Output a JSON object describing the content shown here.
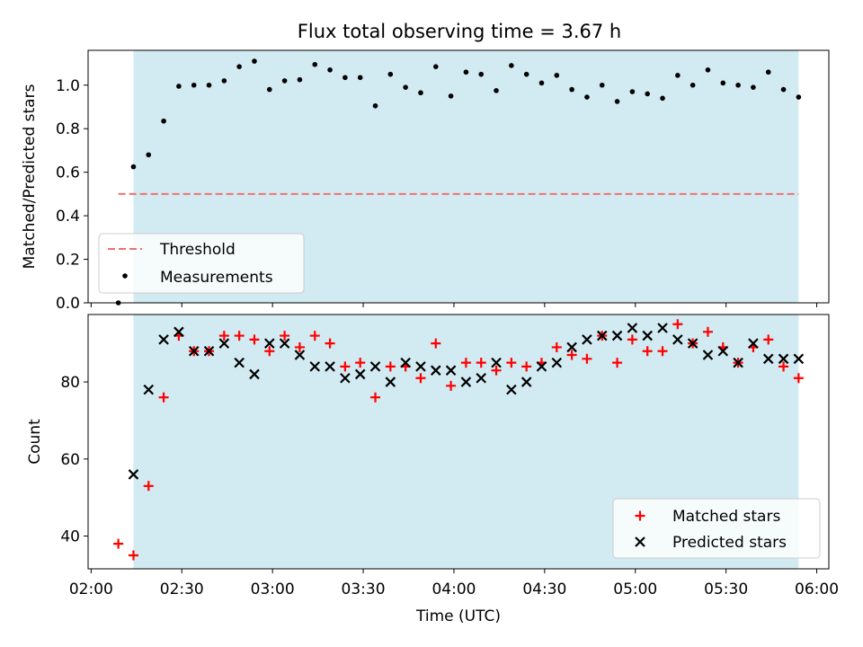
{
  "title": "Flux total observing time = 3.67 h",
  "colors": {
    "shade": "#add8e6",
    "threshold": "#f07070",
    "matched": "#ff0000",
    "predicted": "#000000",
    "measurement": "#000000"
  },
  "chart_data": [
    {
      "type": "scatter",
      "panel": "top",
      "ylabel": "Matched/Predicted stars",
      "xlabel": "",
      "ylim": [
        0.0,
        1.16
      ],
      "yticks": [
        0.0,
        0.2,
        0.4,
        0.6,
        0.8,
        1.0
      ],
      "ytick_labels": [
        "0.0",
        "0.2",
        "0.4",
        "0.6",
        "0.8",
        "1.0"
      ],
      "shaded_span": [
        "02:14",
        "05:54"
      ],
      "threshold": {
        "value": 0.5,
        "x_range": [
          "02:09",
          "05:54"
        ],
        "style": "dashed",
        "name": "Threshold"
      },
      "legend": {
        "position": "lower-left",
        "entries": [
          "Threshold",
          "Measurements"
        ]
      },
      "series": [
        {
          "name": "Measurements",
          "marker": "dot",
          "x": [
            "02:09",
            "02:14",
            "02:19",
            "02:24",
            "02:29",
            "02:34",
            "02:39",
            "02:44",
            "02:49",
            "02:54",
            "02:59",
            "03:04",
            "03:09",
            "03:14",
            "03:19",
            "03:24",
            "03:29",
            "03:34",
            "03:39",
            "03:44",
            "03:49",
            "03:54",
            "03:59",
            "04:04",
            "04:09",
            "04:14",
            "04:19",
            "04:24",
            "04:29",
            "04:34",
            "04:39",
            "04:44",
            "04:49",
            "04:54",
            "04:59",
            "05:04",
            "05:09",
            "05:14",
            "05:19",
            "05:24",
            "05:29",
            "05:34",
            "05:39",
            "05:44",
            "05:49",
            "05:54"
          ],
          "y": [
            0.0,
            0.625,
            0.68,
            0.835,
            0.995,
            1.0,
            1.0,
            1.02,
            1.085,
            1.11,
            0.98,
            1.02,
            1.025,
            1.095,
            1.07,
            1.035,
            1.035,
            0.905,
            1.05,
            0.99,
            0.965,
            1.085,
            0.95,
            1.06,
            1.05,
            0.975,
            1.09,
            1.05,
            1.01,
            1.045,
            0.98,
            0.945,
            1.0,
            0.925,
            0.97,
            0.96,
            0.94,
            1.045,
            1.0,
            1.07,
            1.01,
            1.0,
            0.99,
            1.06,
            0.98,
            0.945
          ]
        }
      ]
    },
    {
      "type": "scatter",
      "panel": "bottom",
      "ylabel": "Count",
      "xlabel": "Time (UTC)",
      "ylim": [
        31.5,
        97.5
      ],
      "yticks": [
        40,
        60,
        80
      ],
      "ytick_labels": [
        "40",
        "60",
        "80"
      ],
      "xlim": [
        "01:59",
        "06:04"
      ],
      "xticks": [
        "02:00",
        "02:30",
        "03:00",
        "03:30",
        "04:00",
        "04:30",
        "05:00",
        "05:30",
        "06:00"
      ],
      "xtick_labels": [
        "02:00",
        "02:30",
        "03:00",
        "03:30",
        "04:00",
        "04:30",
        "05:00",
        "05:30",
        "06:00"
      ],
      "shaded_span": [
        "02:14",
        "05:54"
      ],
      "legend": {
        "position": "lower-right",
        "entries": [
          "Matched stars",
          "Predicted stars"
        ]
      },
      "series": [
        {
          "name": "Matched stars",
          "marker": "plus",
          "x": [
            "02:09",
            "02:14",
            "02:19",
            "02:24",
            "02:29",
            "02:34",
            "02:39",
            "02:44",
            "02:49",
            "02:54",
            "02:59",
            "03:04",
            "03:09",
            "03:14",
            "03:19",
            "03:24",
            "03:29",
            "03:34",
            "03:39",
            "03:44",
            "03:49",
            "03:54",
            "03:59",
            "04:04",
            "04:09",
            "04:14",
            "04:19",
            "04:24",
            "04:29",
            "04:34",
            "04:39",
            "04:44",
            "04:49",
            "04:54",
            "04:59",
            "05:04",
            "05:09",
            "05:14",
            "05:19",
            "05:24",
            "05:29",
            "05:34",
            "05:39",
            "05:44",
            "05:49",
            "05:54"
          ],
          "y": [
            38,
            35,
            53,
            76,
            92,
            88,
            88,
            92,
            92,
            91,
            88,
            92,
            89,
            92,
            90,
            84,
            85,
            76,
            84,
            84,
            81,
            90,
            79,
            85,
            85,
            83,
            85,
            84,
            85,
            89,
            87,
            86,
            92,
            85,
            91,
            88,
            88,
            95,
            90,
            93,
            89,
            85,
            89,
            91,
            84,
            81
          ]
        },
        {
          "name": "Predicted stars",
          "marker": "x",
          "x": [
            "02:14",
            "02:19",
            "02:24",
            "02:29",
            "02:34",
            "02:39",
            "02:44",
            "02:49",
            "02:54",
            "02:59",
            "03:04",
            "03:09",
            "03:14",
            "03:19",
            "03:24",
            "03:29",
            "03:34",
            "03:39",
            "03:44",
            "03:49",
            "03:54",
            "03:59",
            "04:04",
            "04:09",
            "04:14",
            "04:19",
            "04:24",
            "04:29",
            "04:34",
            "04:39",
            "04:44",
            "04:49",
            "04:54",
            "04:59",
            "05:04",
            "05:09",
            "05:14",
            "05:19",
            "05:24",
            "05:29",
            "05:34",
            "05:39",
            "05:44",
            "05:49",
            "05:54"
          ],
          "y": [
            56,
            78,
            91,
            93,
            88,
            88,
            90,
            85,
            82,
            90,
            90,
            87,
            84,
            84,
            81,
            82,
            84,
            80,
            85,
            84,
            83,
            83,
            80,
            81,
            85,
            78,
            80,
            84,
            85,
            89,
            91,
            92,
            92,
            94,
            92,
            94,
            91,
            90,
            87,
            88,
            85,
            90,
            86,
            86,
            86
          ]
        }
      ]
    }
  ]
}
